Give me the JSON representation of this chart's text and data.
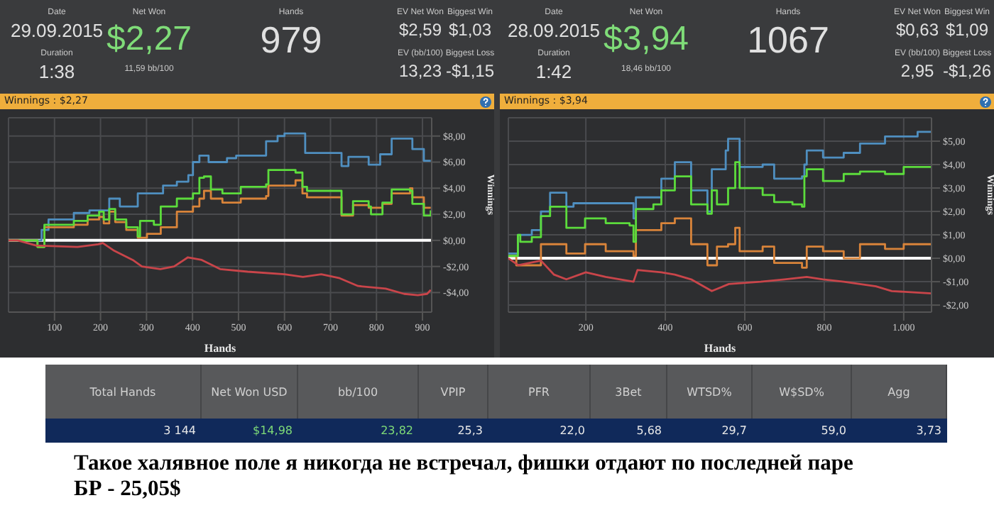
{
  "chart_data": [
    {
      "type": "other",
      "annotations": [
        "Date",
        "29.09.2015",
        "Duration",
        "1:38",
        "Net Won",
        "$2,27",
        "11,59 bb/100",
        "Hands",
        "979",
        "EV Net Won",
        "Biggest Win",
        "$2,59",
        "$1,03",
        "EV (bb/100)",
        "Biggest Loss",
        "13,23",
        "-$1,15"
      ],
      "colors": [
        "#c8c8c8",
        "#e0e0e0",
        "#c8c8c8",
        "#e0e0e0",
        "#c8c8c8",
        "#7fdc78",
        "#c8c8c8",
        "#c8c8c8",
        "#e0e0e0",
        "#c8c8c8",
        "#c8c8c8",
        "#e0e0e0",
        "#e0e0e0",
        "#c8c8c8",
        "#c8c8c8",
        "#e0e0e0",
        "#e0e0e0"
      ]
    },
    {
      "type": "other",
      "annotations": [
        "Date",
        "28.09.2015",
        "Duration",
        "1:42",
        "Net Won",
        "$3,94",
        "18,46 bb/100",
        "Hands",
        "1067",
        "EV Net Won",
        "Biggest Win",
        "$0,63",
        "$1,09",
        "EV (bb/100)",
        "Biggest Loss",
        "2,95",
        "-$1,26"
      ],
      "colors": [
        "#c8c8c8",
        "#e0e0e0",
        "#c8c8c8",
        "#e0e0e0",
        "#c8c8c8",
        "#7fdc78",
        "#c8c8c8",
        "#c8c8c8",
        "#e0e0e0",
        "#c8c8c8",
        "#c8c8c8",
        "#e0e0e0",
        "#e0e0e0",
        "#c8c8c8",
        "#c8c8c8",
        "#e0e0e0",
        "#e0e0e0"
      ]
    },
    {
      "type": "step",
      "title": "Winnings : $2,27",
      "xlabel": "Hands",
      "ylabel": "Winnings",
      "grid": true,
      "xlim": [
        0,
        920
      ],
      "ylim": [
        -5.5,
        9.4
      ],
      "xticks": [
        100,
        200,
        300,
        400,
        500,
        600,
        700,
        800,
        900
      ],
      "yticks": [
        {
          "value": -4,
          "label": "-$4,00"
        },
        {
          "value": -2,
          "label": "-$2,00"
        },
        {
          "value": 0,
          "label": "$0,00"
        },
        {
          "value": 2,
          "label": "$2,00"
        },
        {
          "value": 4,
          "label": "$4,00"
        },
        {
          "value": 6,
          "label": "$6,00"
        },
        {
          "value": 8,
          "label": "$8,00"
        }
      ],
      "ref_lines": [
        {
          "axis": "y",
          "value": 0,
          "color": "#ffffff"
        }
      ],
      "series": [
        {
          "color": "#4f8fc0",
          "x": [
            0,
            72,
            87,
            142,
            176,
            219,
            242,
            281,
            336,
            366,
            391,
            401,
            415,
            435,
            475,
            495,
            560,
            585,
            600,
            645,
            724,
            739,
            783,
            808,
            833,
            878,
            903,
            918
          ],
          "values": [
            0,
            0.8,
            1.6,
            2.1,
            2.3,
            3.2,
            2.6,
            3.6,
            4.2,
            4.5,
            5.0,
            6.0,
            6.5,
            6.0,
            6.3,
            6.5,
            7.6,
            8.0,
            8.2,
            6.7,
            5.7,
            6.4,
            5.8,
            6.6,
            7.8,
            7.0,
            6.1,
            6.1
          ]
        },
        {
          "color": "#d9843a",
          "x": [
            0,
            63,
            78,
            142,
            172,
            197,
            207,
            219,
            232,
            256,
            281,
            301,
            331,
            366,
            401,
            415,
            425,
            440,
            465,
            505,
            560,
            565,
            624,
            639,
            649,
            724,
            749,
            783,
            813,
            833,
            873,
            878,
            903,
            918
          ],
          "values": [
            0,
            -0.5,
            1.0,
            1.2,
            1.6,
            1.8,
            1.3,
            2.2,
            1.4,
            0.8,
            0.2,
            0.5,
            1.0,
            2.2,
            2.6,
            3.2,
            3.8,
            3.2,
            2.9,
            3.2,
            3.4,
            4.2,
            4.6,
            3.6,
            3.3,
            1.9,
            2.7,
            2.5,
            2.8,
            3.6,
            4.0,
            3.3,
            2.5,
            2.5
          ]
        },
        {
          "color": "#5cdc3c",
          "x": [
            0,
            63,
            78,
            142,
            172,
            197,
            207,
            219,
            232,
            256,
            281,
            286,
            316,
            331,
            366,
            401,
            415,
            425,
            440,
            465,
            505,
            560,
            565,
            624,
            639,
            649,
            724,
            749,
            783,
            788,
            813,
            833,
            873,
            878,
            903,
            918
          ],
          "values": [
            0,
            -0.5,
            1.2,
            1.5,
            1.9,
            2.2,
            1.6,
            2.4,
            1.6,
            1.0,
            0.3,
            1.5,
            1.2,
            2.6,
            3.2,
            3.6,
            4.8,
            4.9,
            3.9,
            3.6,
            4.1,
            4.3,
            5.4,
            5.2,
            4.1,
            3.8,
            2.0,
            3.0,
            2.6,
            2.0,
            2.9,
            3.9,
            3.8,
            2.8,
            1.9,
            2.3
          ]
        },
        {
          "color": "#c9454a",
          "type": "line",
          "x": [
            0,
            20,
            60,
            150,
            195,
            205,
            230,
            270,
            290,
            330,
            360,
            390,
            420,
            460,
            520,
            600,
            640,
            680,
            720,
            760,
            820,
            860,
            890,
            910,
            918
          ],
          "values": [
            0,
            0,
            -0.4,
            -0.5,
            -0.3,
            -0.2,
            -0.8,
            -1.5,
            -2.0,
            -2.2,
            -2.0,
            -1.3,
            -1.5,
            -2.2,
            -2.4,
            -2.6,
            -2.8,
            -2.6,
            -2.9,
            -3.5,
            -3.7,
            -4.1,
            -4.2,
            -4.1,
            -3.8
          ]
        }
      ]
    },
    {
      "type": "step",
      "title": "Winnings : $3,94",
      "xlabel": "Hands",
      "ylabel": "Winnings",
      "grid": true,
      "xlim": [
        5,
        1070
      ],
      "ylim": [
        -2.3,
        6.0
      ],
      "xticks": [
        200,
        400,
        600,
        800,
        {
          "value": 1000,
          "label": "1.000"
        }
      ],
      "yticks": [
        {
          "value": -2,
          "label": "-$2,00"
        },
        {
          "value": -1,
          "label": "-$1,00"
        },
        {
          "value": 0,
          "label": "$0,00"
        },
        {
          "value": 1,
          "label": "$1,00"
        },
        {
          "value": 2,
          "label": "$2,00"
        },
        {
          "value": 3,
          "label": "$3,00"
        },
        {
          "value": 4,
          "label": "$4,00"
        },
        {
          "value": 5,
          "label": "$5,00"
        }
      ],
      "ref_lines": [
        {
          "axis": "y",
          "value": 0,
          "color": "#ffffff"
        }
      ],
      "series": [
        {
          "color": "#4f8fc0",
          "x": [
            5,
            29,
            64,
            87,
            110,
            151,
            169,
            320,
            326,
            390,
            424,
            465,
            506,
            517,
            552,
            558,
            587,
            645,
            674,
            744,
            750,
            756,
            797,
            849,
            890,
            953,
            1035,
            1070
          ],
          "values": [
            0.2,
            1.0,
            1.2,
            2.0,
            2.8,
            2.2,
            2.35,
            1.7,
            2.6,
            3.4,
            4.1,
            2.9,
            2.0,
            3.8,
            4.6,
            5.1,
            3.9,
            4.0,
            3.4,
            3.5,
            4.0,
            4.6,
            4.3,
            4.5,
            4.9,
            5.2,
            5.4,
            5.4
          ]
        },
        {
          "color": "#d9843a",
          "x": [
            5,
            25,
            50,
            87,
            151,
            198,
            250,
            320,
            326,
            390,
            424,
            465,
            506,
            530,
            558,
            576,
            587,
            645,
            674,
            744,
            756,
            797,
            849,
            890,
            953,
            1000,
            1070
          ],
          "values": [
            0.1,
            -0.3,
            -0.3,
            0.6,
            0.2,
            0.6,
            0.3,
            0.1,
            1.2,
            1.5,
            1.7,
            0.6,
            -0.3,
            0.5,
            0.6,
            1.3,
            0.3,
            0.5,
            -0.2,
            -0.4,
            0.5,
            0.3,
            0.0,
            0.6,
            0.4,
            0.6,
            0.6
          ]
        },
        {
          "color": "#5cdc3c",
          "x": [
            5,
            29,
            35,
            64,
            87,
            110,
            151,
            198,
            250,
            310,
            320,
            326,
            370,
            390,
            424,
            465,
            506,
            517,
            530,
            558,
            576,
            587,
            645,
            674,
            720,
            744,
            750,
            756,
            797,
            849,
            890,
            953,
            1000,
            1070
          ],
          "values": [
            0.1,
            1.0,
            0.7,
            0.9,
            1.8,
            2.2,
            1.3,
            1.7,
            1.5,
            1.4,
            0.7,
            2.1,
            2.3,
            2.9,
            3.5,
            2.3,
            1.9,
            2.9,
            2.3,
            3.0,
            4.1,
            3.0,
            2.7,
            2.4,
            2.3,
            2.2,
            3.5,
            3.8,
            3.3,
            3.6,
            3.7,
            3.6,
            3.9,
            3.9
          ]
        },
        {
          "color": "#c9454a",
          "type": "line",
          "x": [
            5,
            30,
            87,
            120,
            151,
            200,
            250,
            320,
            330,
            390,
            424,
            465,
            517,
            560,
            640,
            700,
            756,
            797,
            849,
            930,
            970,
            1070
          ],
          "values": [
            0,
            -0.3,
            -0.1,
            -0.7,
            -0.9,
            -0.6,
            -0.8,
            -1.0,
            -0.5,
            -0.6,
            -0.7,
            -0.9,
            -1.4,
            -1.1,
            -1.0,
            -0.9,
            -0.8,
            -0.9,
            -1.0,
            -1.2,
            -1.4,
            -1.5
          ]
        }
      ]
    },
    {
      "type": "other",
      "annotations": [
        "Total Hands",
        "Net Won USD",
        "bb/100",
        "VPIP",
        "PFR",
        "3Bet",
        "WTSD%",
        "W$SD%",
        "Agg",
        "3 144",
        "$14,98",
        "23,82",
        "25,3",
        "22,0",
        "5,68",
        "29,7",
        "59,0",
        "3,73"
      ],
      "colors": [
        "#d0d0d0",
        "#d0d0d0",
        "#d0d0d0",
        "#d0d0d0",
        "#d0d0d0",
        "#d0d0d0",
        "#d0d0d0",
        "#d0d0d0",
        "#d0d0d0",
        "#e8e8e8",
        "#7fdc78",
        "#7fdc78",
        "#e8e8e8",
        "#e8e8e8",
        "#e8e8e8",
        "#e8e8e8",
        "#e8e8e8",
        "#e8e8e8"
      ]
    },
    {
      "type": "other",
      "annotations": [
        "Такое халявное поле я никогда не встречал, фишки отдают по последней паре",
        "БР - 25,05$"
      ],
      "colors": [
        "#000000",
        "#000000"
      ]
    }
  ]
}
